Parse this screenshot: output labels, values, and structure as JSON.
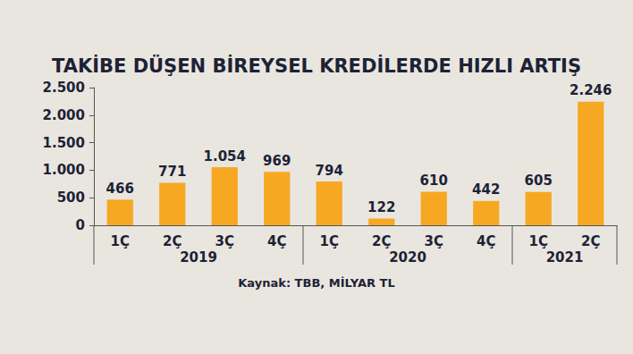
{
  "chart_data": {
    "type": "bar",
    "title": "TAKİBE DÜŞEN BİREYSEL KREDİLERDE HIZLI ARTIŞ",
    "source": "Kaynak: TBB, MİLYAR TL",
    "categories": [
      "1Ç",
      "2Ç",
      "3Ç",
      "4Ç",
      "1Ç",
      "2Ç",
      "3Ç",
      "4Ç",
      "1Ç",
      "2Ç"
    ],
    "category_groups": [
      "2019",
      "2019",
      "2019",
      "2019",
      "2020",
      "2020",
      "2020",
      "2020",
      "2021",
      "2021"
    ],
    "values": [
      466,
      771,
      1054,
      969,
      794,
      122,
      610,
      442,
      605,
      2246
    ],
    "value_labels": [
      "466",
      "771",
      "1.054",
      "969",
      "794",
      "122",
      "610",
      "442",
      "605",
      "2.246"
    ],
    "color": "#f7a823",
    "ylim": [
      0,
      2500
    ],
    "yticks": [
      0,
      500,
      {
        "value": 1000,
        "label": "1.000"
      },
      {
        "value": 1500,
        "label": "1.500"
      },
      {
        "value": 2000,
        "label": "2.000"
      },
      {
        "value": 2500,
        "label": "2.500"
      }
    ],
    "grid": false,
    "data_labels": true
  }
}
